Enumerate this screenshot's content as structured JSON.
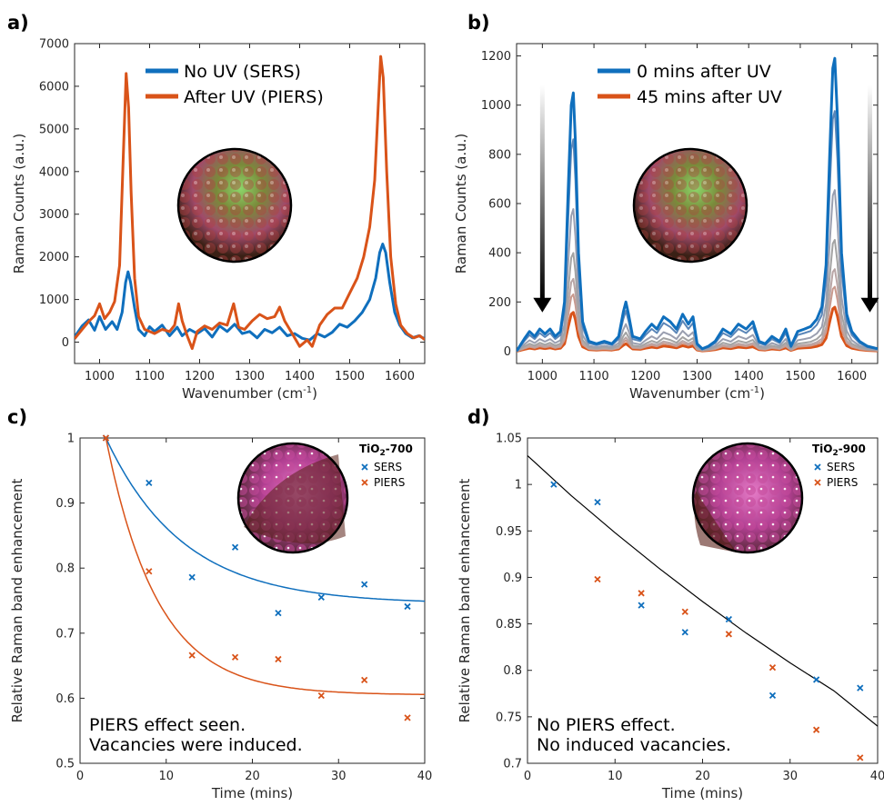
{
  "chart_data": [
    {
      "id": "a",
      "panel_label": "a)",
      "type": "line",
      "xlabel": "Wavenumber (cm",
      "xlabel_sup": "-1",
      "xlabel_end": ")",
      "ylabel": "Raman Counts (a.u.)",
      "xlim": [
        950,
        1650
      ],
      "ylim": [
        -500,
        7000
      ],
      "xticks": [
        1000,
        1100,
        1200,
        1300,
        1400,
        1500,
        1600
      ],
      "yticks": [
        0,
        1000,
        2000,
        3000,
        4000,
        5000,
        6000,
        7000
      ],
      "legend_position": "top-center",
      "series": [
        {
          "name": "No UV (SERS)",
          "color": "#0f6fbd",
          "points": [
            [
              950,
              120
            ],
            [
              965,
              380
            ],
            [
              978,
              520
            ],
            [
              990,
              280
            ],
            [
              1000,
              600
            ],
            [
              1012,
              300
            ],
            [
              1025,
              480
            ],
            [
              1035,
              300
            ],
            [
              1045,
              700
            ],
            [
              1052,
              1400
            ],
            [
              1057,
              1650
            ],
            [
              1062,
              1400
            ],
            [
              1070,
              800
            ],
            [
              1078,
              300
            ],
            [
              1090,
              150
            ],
            [
              1100,
              360
            ],
            [
              1110,
              250
            ],
            [
              1125,
              400
            ],
            [
              1140,
              150
            ],
            [
              1155,
              350
            ],
            [
              1165,
              150
            ],
            [
              1180,
              300
            ],
            [
              1195,
              200
            ],
            [
              1210,
              320
            ],
            [
              1225,
              120
            ],
            [
              1240,
              380
            ],
            [
              1255,
              250
            ],
            [
              1270,
              420
            ],
            [
              1285,
              200
            ],
            [
              1300,
              250
            ],
            [
              1315,
              100
            ],
            [
              1330,
              300
            ],
            [
              1345,
              220
            ],
            [
              1360,
              350
            ],
            [
              1375,
              150
            ],
            [
              1390,
              200
            ],
            [
              1405,
              90
            ],
            [
              1420,
              50
            ],
            [
              1435,
              200
            ],
            [
              1450,
              120
            ],
            [
              1465,
              230
            ],
            [
              1480,
              420
            ],
            [
              1495,
              350
            ],
            [
              1510,
              500
            ],
            [
              1525,
              700
            ],
            [
              1540,
              1000
            ],
            [
              1552,
              1500
            ],
            [
              1560,
              2100
            ],
            [
              1566,
              2300
            ],
            [
              1572,
              2100
            ],
            [
              1580,
              1400
            ],
            [
              1590,
              700
            ],
            [
              1600,
              400
            ],
            [
              1612,
              200
            ],
            [
              1625,
              100
            ],
            [
              1638,
              150
            ],
            [
              1650,
              80
            ]
          ]
        },
        {
          "name": "After UV (PIERS)",
          "color": "#d95319",
          "points": [
            [
              950,
              80
            ],
            [
              965,
              300
            ],
            [
              978,
              480
            ],
            [
              990,
              620
            ],
            [
              1000,
              900
            ],
            [
              1010,
              550
            ],
            [
              1020,
              700
            ],
            [
              1030,
              950
            ],
            [
              1040,
              1800
            ],
            [
              1047,
              4200
            ],
            [
              1053,
              6300
            ],
            [
              1058,
              5500
            ],
            [
              1063,
              3500
            ],
            [
              1070,
              1500
            ],
            [
              1078,
              600
            ],
            [
              1090,
              300
            ],
            [
              1100,
              250
            ],
            [
              1110,
              200
            ],
            [
              1125,
              300
            ],
            [
              1140,
              250
            ],
            [
              1150,
              400
            ],
            [
              1158,
              900
            ],
            [
              1165,
              500
            ],
            [
              1175,
              150
            ],
            [
              1185,
              -150
            ],
            [
              1195,
              250
            ],
            [
              1210,
              380
            ],
            [
              1225,
              300
            ],
            [
              1240,
              450
            ],
            [
              1255,
              400
            ],
            [
              1268,
              900
            ],
            [
              1278,
              350
            ],
            [
              1290,
              300
            ],
            [
              1305,
              500
            ],
            [
              1320,
              650
            ],
            [
              1335,
              550
            ],
            [
              1350,
              600
            ],
            [
              1360,
              820
            ],
            [
              1370,
              500
            ],
            [
              1385,
              200
            ],
            [
              1400,
              -100
            ],
            [
              1415,
              50
            ],
            [
              1425,
              -100
            ],
            [
              1440,
              400
            ],
            [
              1455,
              650
            ],
            [
              1470,
              800
            ],
            [
              1485,
              800
            ],
            [
              1500,
              1150
            ],
            [
              1515,
              1500
            ],
            [
              1528,
              2000
            ],
            [
              1540,
              2700
            ],
            [
              1550,
              3800
            ],
            [
              1557,
              5500
            ],
            [
              1562,
              6700
            ],
            [
              1567,
              6200
            ],
            [
              1574,
              4000
            ],
            [
              1582,
              2000
            ],
            [
              1592,
              900
            ],
            [
              1602,
              400
            ],
            [
              1615,
              200
            ],
            [
              1628,
              100
            ],
            [
              1640,
              150
            ],
            [
              1650,
              60
            ]
          ]
        }
      ]
    },
    {
      "id": "b",
      "panel_label": "b)",
      "type": "line",
      "xlabel": "Wavenumber (cm",
      "xlabel_sup": "-1",
      "xlabel_end": ")",
      "ylabel": "Raman Counts (a.u.)",
      "xlim": [
        950,
        1650
      ],
      "ylim": [
        -50,
        1250
      ],
      "xticks": [
        1000,
        1100,
        1200,
        1300,
        1400,
        1500,
        1600
      ],
      "yticks": [
        0,
        200,
        400,
        600,
        800,
        1000,
        1200
      ],
      "legend_position": "top-center",
      "series": [
        {
          "name": "0 mins after UV",
          "color": "#0f6fbd",
          "scale": 1.0
        },
        {
          "name": "",
          "color": "#5b86b8",
          "scale": 0.82
        },
        {
          "name": "",
          "color": "#9a9fb0",
          "scale": 0.55
        },
        {
          "name": "",
          "color": "#a3a3a3",
          "scale": 0.38
        },
        {
          "name": "",
          "color": "#b9a6a6",
          "scale": 0.28
        },
        {
          "name": "",
          "color": "#c99a8e",
          "scale": 0.22
        },
        {
          "name": "45 mins after UV",
          "color": "#d95319",
          "scale": 0.15
        }
      ],
      "base_points": [
        [
          950,
          0
        ],
        [
          965,
          50
        ],
        [
          975,
          80
        ],
        [
          985,
          60
        ],
        [
          995,
          90
        ],
        [
          1005,
          70
        ],
        [
          1015,
          90
        ],
        [
          1025,
          60
        ],
        [
          1035,
          80
        ],
        [
          1043,
          200
        ],
        [
          1050,
          650
        ],
        [
          1056,
          1000
        ],
        [
          1060,
          1050
        ],
        [
          1064,
          850
        ],
        [
          1070,
          400
        ],
        [
          1078,
          120
        ],
        [
          1090,
          40
        ],
        [
          1105,
          30
        ],
        [
          1120,
          40
        ],
        [
          1135,
          30
        ],
        [
          1148,
          60
        ],
        [
          1157,
          160
        ],
        [
          1162,
          200
        ],
        [
          1167,
          150
        ],
        [
          1175,
          60
        ],
        [
          1190,
          50
        ],
        [
          1200,
          80
        ],
        [
          1212,
          110
        ],
        [
          1222,
          90
        ],
        [
          1235,
          140
        ],
        [
          1248,
          120
        ],
        [
          1260,
          90
        ],
        [
          1272,
          150
        ],
        [
          1283,
          110
        ],
        [
          1292,
          140
        ],
        [
          1300,
          30
        ],
        [
          1310,
          10
        ],
        [
          1322,
          20
        ],
        [
          1335,
          40
        ],
        [
          1350,
          90
        ],
        [
          1365,
          70
        ],
        [
          1380,
          110
        ],
        [
          1395,
          90
        ],
        [
          1408,
          120
        ],
        [
          1420,
          40
        ],
        [
          1432,
          30
        ],
        [
          1445,
          60
        ],
        [
          1460,
          40
        ],
        [
          1472,
          90
        ],
        [
          1482,
          20
        ],
        [
          1495,
          80
        ],
        [
          1508,
          90
        ],
        [
          1520,
          100
        ],
        [
          1532,
          130
        ],
        [
          1542,
          180
        ],
        [
          1550,
          350
        ],
        [
          1557,
          800
        ],
        [
          1563,
          1150
        ],
        [
          1567,
          1190
        ],
        [
          1572,
          950
        ],
        [
          1580,
          400
        ],
        [
          1590,
          150
        ],
        [
          1600,
          80
        ],
        [
          1615,
          40
        ],
        [
          1630,
          20
        ],
        [
          1650,
          10
        ]
      ],
      "arrows": [
        {
          "x": 1000,
          "from": 1080,
          "to": 180
        },
        {
          "x": 1635,
          "from": 1080,
          "to": 180
        }
      ]
    },
    {
      "id": "c",
      "panel_label": "c)",
      "type": "scatter",
      "xlabel": "Time (mins)",
      "ylabel": "Relative Raman band enhancement",
      "xlim": [
        0,
        40
      ],
      "ylim": [
        0.5,
        1.0
      ],
      "xticks": [
        0,
        10,
        20,
        30,
        40
      ],
      "yticks": [
        0.5,
        0.6,
        0.7,
        0.8,
        0.9,
        1.0
      ],
      "legend_title": "TiO",
      "legend_title_sub": "2",
      "legend_title_end": "-700",
      "legend_position": "top-right",
      "annotation": [
        "PIERS effect seen.",
        "Vacancies were induced."
      ],
      "series": [
        {
          "name": "SERS",
          "color": "#0f6fbd",
          "x": [
            3,
            8,
            13,
            18,
            23,
            28,
            33,
            38
          ],
          "y": [
            1.0,
            0.931,
            0.786,
            0.832,
            0.731,
            0.755,
            0.775,
            0.741
          ],
          "fit": {
            "x0": 3,
            "a": 0.745,
            "b": 0.255,
            "tau": 9.0
          }
        },
        {
          "name": "PIERS",
          "color": "#d95319",
          "x": [
            3,
            8,
            13,
            18,
            23,
            28,
            33,
            38
          ],
          "y": [
            1.0,
            0.795,
            0.666,
            0.663,
            0.66,
            0.604,
            0.628,
            0.57
          ],
          "fit": {
            "x0": 3,
            "a": 0.605,
            "b": 0.395,
            "tau": 6.0
          }
        }
      ]
    },
    {
      "id": "d",
      "panel_label": "d)",
      "type": "scatter",
      "xlabel": "Time (mins)",
      "ylabel": "Relative Raman band enhancement",
      "xlim": [
        0,
        40
      ],
      "ylim": [
        0.7,
        1.05
      ],
      "xticks": [
        0,
        10,
        20,
        30,
        40
      ],
      "yticks": [
        0.7,
        0.75,
        0.8,
        0.85,
        0.9,
        0.95,
        1.0,
        1.05
      ],
      "legend_title": "TiO",
      "legend_title_sub": "2",
      "legend_title_end": "-900",
      "legend_position": "top-right",
      "annotation": [
        "No PIERS effect.",
        "No induced vacancies."
      ],
      "series": [
        {
          "name": "SERS",
          "color": "#0f6fbd",
          "x": [
            3,
            8,
            13,
            18,
            23,
            28,
            33,
            38
          ],
          "y": [
            1.0,
            0.981,
            0.87,
            0.841,
            0.855,
            0.773,
            0.79,
            0.781
          ]
        },
        {
          "name": "PIERS",
          "color": "#d95319",
          "x": [
            8,
            13,
            18,
            23,
            28,
            33,
            38
          ],
          "y": [
            0.898,
            0.883,
            0.863,
            0.839,
            0.803,
            0.736,
            0.706
          ]
        }
      ],
      "fit": {
        "color": "#000000",
        "x": [
          0,
          5,
          10,
          15,
          20,
          25,
          30,
          35,
          40
        ],
        "y": [
          1.031,
          0.988,
          0.948,
          0.91,
          0.874,
          0.84,
          0.808,
          0.778,
          0.74
        ]
      }
    }
  ]
}
